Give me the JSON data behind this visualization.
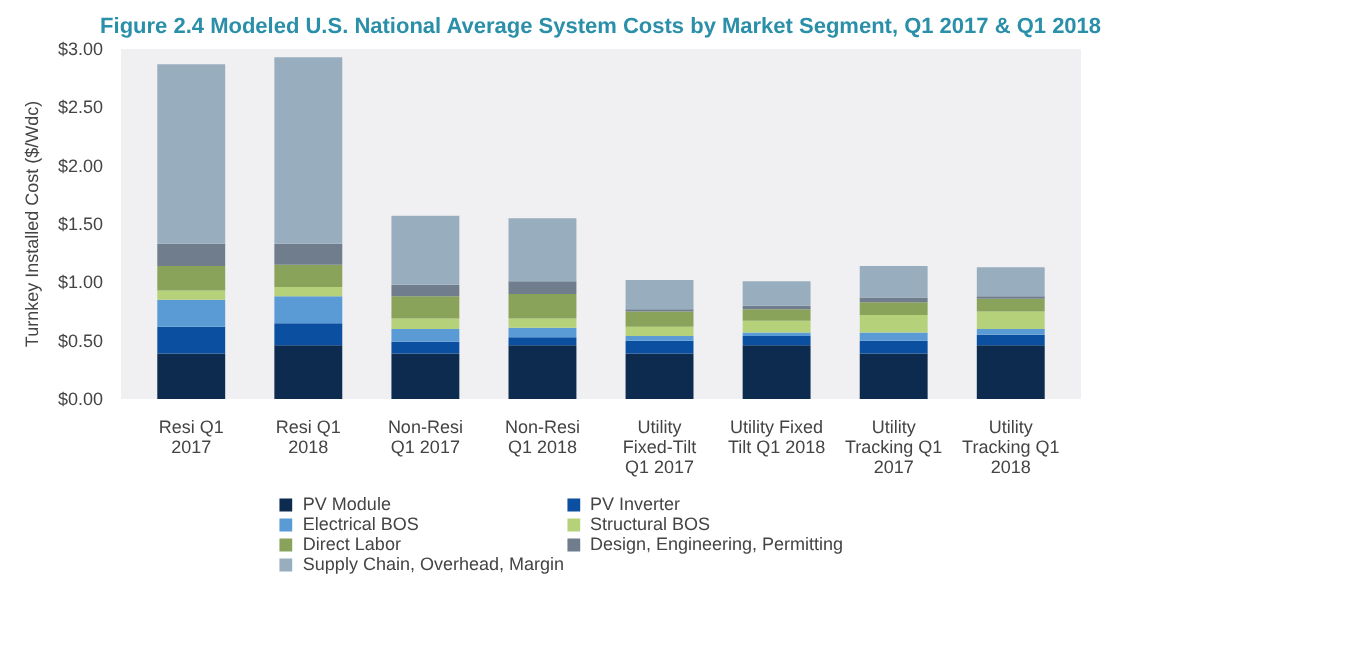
{
  "chart_data": {
    "type": "bar",
    "stacked": true,
    "title": "Figure 2.4 Modeled U.S. National Average System Costs by Market Segment, Q1 2017 & Q1 2018",
    "ylabel": "Turnkey Installed Cost ($/Wdc)",
    "categories": [
      "Resi Q1\n2017",
      "Resi Q1\n2018",
      "Non-Resi\nQ1 2017",
      "Non-Resi\nQ1 2018",
      "Utility\nFixed-Tilt\nQ1 2017",
      "Utility Fixed\nTilt Q1 2018",
      "Utility\nTracking Q1\n2017",
      "Utility\nTracking Q1\n2018"
    ],
    "series": [
      {
        "name": "PV Module",
        "color": "#0d2a4f",
        "values": [
          0.39,
          0.46,
          0.39,
          0.46,
          0.39,
          0.46,
          0.39,
          0.46
        ]
      },
      {
        "name": "PV Inverter",
        "color": "#0a4fa0",
        "values": [
          0.23,
          0.19,
          0.1,
          0.07,
          0.11,
          0.08,
          0.11,
          0.09
        ]
      },
      {
        "name": "Electrical BOS",
        "color": "#5b9bd5",
        "values": [
          0.23,
          0.23,
          0.11,
          0.08,
          0.04,
          0.03,
          0.07,
          0.05
        ]
      },
      {
        "name": "Structural BOS",
        "color": "#b5d27a",
        "values": [
          0.08,
          0.08,
          0.09,
          0.08,
          0.08,
          0.1,
          0.15,
          0.15
        ]
      },
      {
        "name": "Direct Labor",
        "color": "#8aa35a",
        "values": [
          0.21,
          0.19,
          0.19,
          0.21,
          0.13,
          0.1,
          0.11,
          0.11
        ]
      },
      {
        "name": "Design, Engineering, Permitting",
        "color": "#6f7d8c",
        "values": [
          0.19,
          0.18,
          0.1,
          0.11,
          0.02,
          0.03,
          0.04,
          0.02
        ]
      },
      {
        "name": "Supply Chain, Overhead, Margin",
        "color": "#98aebf",
        "values": [
          1.54,
          1.6,
          0.59,
          0.54,
          0.25,
          0.21,
          0.27,
          0.25
        ]
      }
    ],
    "ylim": [
      0,
      3.0
    ],
    "yticks": [
      {
        "value": 0,
        "label": "$0.00"
      },
      {
        "value": 0.5,
        "label": "$0.50"
      },
      {
        "value": 1.0,
        "label": "$1.00"
      },
      {
        "value": 1.5,
        "label": "$1.50"
      },
      {
        "value": 2.0,
        "label": "$2.00"
      },
      {
        "value": 2.5,
        "label": "$2.50"
      },
      {
        "value": 3.0,
        "label": "$3.00"
      }
    ],
    "grid": false,
    "legend": "bottom"
  }
}
